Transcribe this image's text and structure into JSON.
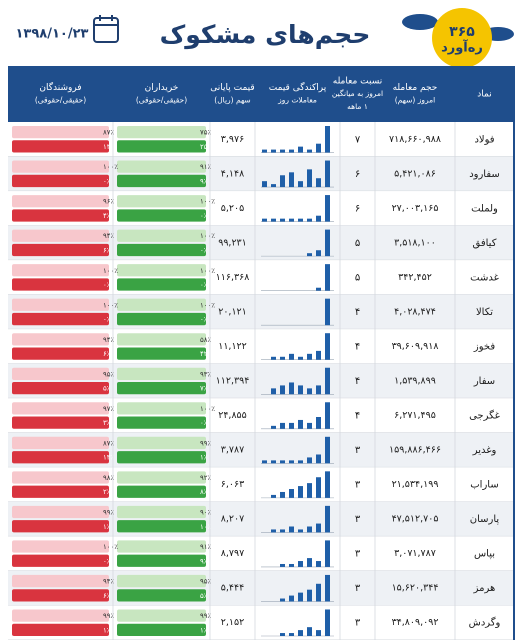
{
  "header": {
    "title": "حجم‌های مشکوک",
    "date": "۱۳۹۸/۱۰/۲۳",
    "logo_number": "۳۶۵",
    "logo_name": "رەآورد"
  },
  "table": {
    "columns": [
      [
        "نماد"
      ],
      [
        "حجم معامله",
        "امروز (سهم)"
      ],
      [
        "نسبت معامله",
        "امروز به میانگین",
        "۱ ماهه"
      ],
      [
        "پراکندگی قیمت",
        "معاملات روز"
      ],
      [
        "قیمت پایانی",
        "سهم (ریال)"
      ],
      [
        "خریداران",
        "(حقیقی/حقوقی)"
      ],
      [
        "فروشندگان",
        "(حقیقی/حقوقی)"
      ]
    ],
    "rows": [
      {
        "symbol": "فولاد",
        "volume": "۷۱۸,۶۶۰,۹۸۸",
        "ratio": "۷",
        "price": "۳,۹۷۶",
        "dispersion": [
          1,
          1,
          1,
          1,
          2,
          1,
          3,
          9
        ],
        "buyers": [
          "۷۵٪",
          "۲۵٪"
        ],
        "sellers": [
          "۸۷٪",
          "۱۳٪"
        ]
      },
      {
        "symbol": "سفارود",
        "volume": "۵,۴۲۱,۰۸۶",
        "ratio": "۶",
        "price": "۴,۱۴۸",
        "dispersion": [
          2,
          1,
          4,
          5,
          2,
          6,
          3,
          9
        ],
        "buyers": [
          "۹۱٪",
          "۹٪"
        ],
        "sellers": [
          "۱۰۰٪",
          "۰٪"
        ]
      },
      {
        "symbol": "ولملت",
        "volume": "۲۷,۰۰۳,۱۶۵",
        "ratio": "۶",
        "price": "۵,۲۰۵",
        "dispersion": [
          1,
          1,
          1,
          1,
          1,
          1,
          2,
          9
        ],
        "buyers": [
          "۱۰۰٪",
          "۰٪"
        ],
        "sellers": [
          "۹۶٪",
          "۴٪"
        ]
      },
      {
        "symbol": "کیافق",
        "volume": "۳,۵۱۸,۱۰۰",
        "ratio": "۵",
        "price": "۹۹,۲۳۱",
        "dispersion": [
          1,
          2,
          9
        ],
        "buyers": [
          "۱۰۰٪",
          "۰٪"
        ],
        "sellers": [
          "۹۴٪",
          "۶٪"
        ]
      },
      {
        "symbol": "غدشت",
        "volume": "۳۴۲,۴۵۲",
        "ratio": "۵",
        "price": "۱۱۶,۳۶۸",
        "dispersion": [
          1,
          9
        ],
        "buyers": [
          "۱۰۰٪",
          "۰٪"
        ],
        "sellers": [
          "۱۰۰٪",
          "۰٪"
        ]
      },
      {
        "symbol": "تکالا",
        "volume": "۴,۰۲۸,۴۷۴",
        "ratio": "۴",
        "price": "۲۰,۱۲۱",
        "dispersion": [
          9
        ],
        "buyers": [
          "۱۰۰٪",
          "۰٪"
        ],
        "sellers": [
          "۱۰۰٪",
          "۰٪"
        ]
      },
      {
        "symbol": "فخوز",
        "volume": "۳۹,۶۰۹,۹۱۸",
        "ratio": "۴",
        "price": "۱۱,۱۲۲",
        "dispersion": [
          1,
          1,
          2,
          1,
          2,
          3,
          9
        ],
        "buyers": [
          "۵۸٪",
          "۴۲٪"
        ],
        "sellers": [
          "۹۴٪",
          "۶٪"
        ]
      },
      {
        "symbol": "سفار",
        "volume": "۱,۵۳۹,۸۹۹",
        "ratio": "۴",
        "price": "۱۱۲,۳۹۴",
        "dispersion": [
          2,
          3,
          4,
          3,
          2,
          3,
          9
        ],
        "buyers": [
          "۹۳٪",
          "۷٪"
        ],
        "sellers": [
          "۹۵٪",
          "۵٪"
        ]
      },
      {
        "symbol": "غگرجی",
        "volume": "۶,۲۷۱,۴۹۵",
        "ratio": "۴",
        "price": "۲۴,۸۵۵",
        "dispersion": [
          1,
          2,
          2,
          3,
          2,
          4,
          9
        ],
        "buyers": [
          "۱۰۰٪",
          "۰٪"
        ],
        "sellers": [
          "۹۷٪",
          "۳٪"
        ]
      },
      {
        "symbol": "وغدیر",
        "volume": "۱۵۹,۸۸۶,۴۶۶",
        "ratio": "۳",
        "price": "۳,۷۸۷",
        "dispersion": [
          1,
          1,
          1,
          1,
          1,
          2,
          3,
          9
        ],
        "buyers": [
          "۹۹٪",
          "۱٪"
        ],
        "sellers": [
          "۸۷٪",
          "۱۳٪"
        ]
      },
      {
        "symbol": "ساراب",
        "volume": "۲۱,۵۳۴,۱۹۹",
        "ratio": "۳",
        "price": "۶,۰۶۳",
        "dispersion": [
          1,
          2,
          3,
          4,
          5,
          7,
          9
        ],
        "buyers": [
          "۹۲٪",
          "۸٪"
        ],
        "sellers": [
          "۹۸٪",
          "۲٪"
        ]
      },
      {
        "symbol": "پارسان",
        "volume": "۴۷,۵۱۲,۷۰۵",
        "ratio": "۳",
        "price": "۸,۲۰۷",
        "dispersion": [
          1,
          1,
          2,
          1,
          2,
          3,
          9
        ],
        "buyers": [
          "۹۰٪",
          "۱۰٪"
        ],
        "sellers": [
          "۹۹٪",
          "۱٪"
        ]
      },
      {
        "symbol": "بپاس",
        "volume": "۳,۰۷۱,۷۸۷",
        "ratio": "۳",
        "price": "۸,۷۹۷",
        "dispersion": [
          1,
          1,
          2,
          3,
          2,
          9
        ],
        "buyers": [
          "۹۱٪",
          "۹٪"
        ],
        "sellers": [
          "۱۰۰٪",
          "۰٪"
        ]
      },
      {
        "symbol": "هرمز",
        "volume": "۱۵,۶۲۰,۳۴۴",
        "ratio": "۳",
        "price": "۵,۴۴۴",
        "dispersion": [
          1,
          2,
          3,
          4,
          6,
          9
        ],
        "buyers": [
          "۹۵٪",
          "۵٪"
        ],
        "sellers": [
          "۹۴٪",
          "۶٪"
        ]
      },
      {
        "symbol": "وگردش",
        "volume": "۳۴,۸۰۹,۰۹۲",
        "ratio": "۳",
        "price": "۲,۱۵۲",
        "dispersion": [
          1,
          1,
          2,
          3,
          2,
          9
        ],
        "buyers": [
          "۹۹٪",
          "۱٪"
        ],
        "sellers": [
          "۹۹٪",
          "۱٪"
        ]
      }
    ]
  }
}
